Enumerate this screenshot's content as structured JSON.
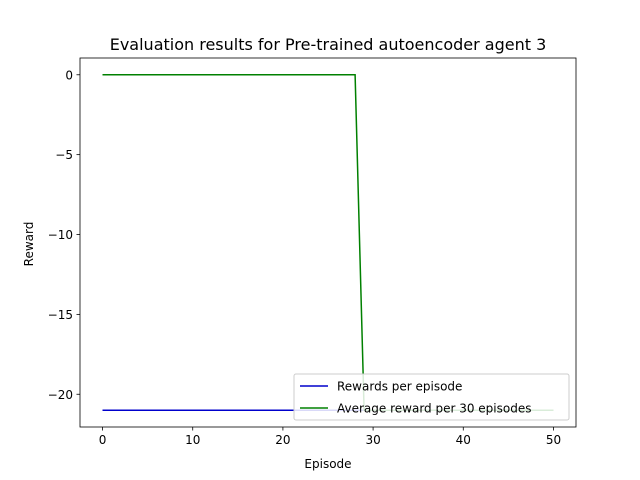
{
  "chart_data": {
    "type": "line",
    "title": "Evaluation results for Pre-trained autoencoder agent 3",
    "xlabel": "Episode",
    "ylabel": "Reward",
    "xlim": [
      -2.5,
      52.5
    ],
    "ylim": [
      -22.05,
      1.05
    ],
    "xticks": [
      0,
      10,
      20,
      30,
      40,
      50
    ],
    "yticks": [
      0,
      -5,
      -10,
      -15,
      -20
    ],
    "ytick_labels": [
      "0",
      "−5",
      "−10",
      "−15",
      "−20"
    ],
    "grid": false,
    "legend_position": "lower-right",
    "series": [
      {
        "name": "Rewards per episode",
        "color": "#0000cc",
        "x": [
          0,
          50
        ],
        "y": [
          -21,
          -21
        ]
      },
      {
        "name": "Average reward per 30 episodes",
        "color": "#008000",
        "x": [
          0,
          28,
          29,
          50
        ],
        "y": [
          0,
          0,
          -21,
          -21
        ]
      }
    ]
  }
}
